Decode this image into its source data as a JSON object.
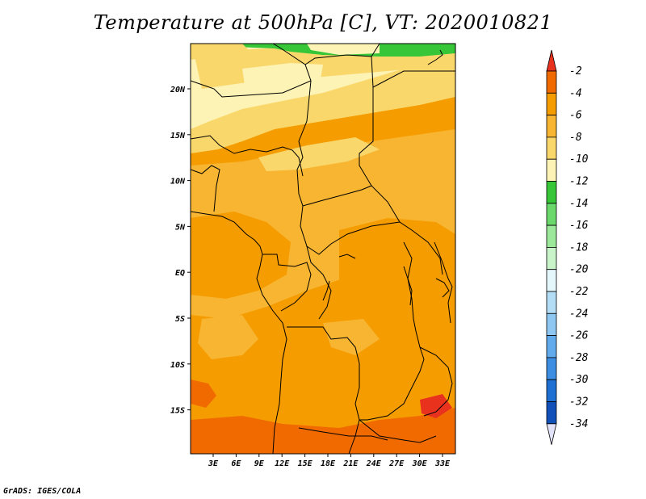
{
  "title": "Temperature at 500hPa [C], VT: 2020010821",
  "credit": "GrADS: IGES/COLA",
  "lat_ticks": [
    "20N",
    "15N",
    "10N",
    "5N",
    "EQ",
    "5S",
    "10S",
    "15S"
  ],
  "lon_ticks": [
    "3E",
    "6E",
    "9E",
    "12E",
    "15E",
    "18E",
    "21E",
    "24E",
    "27E",
    "30E",
    "33E"
  ],
  "colorbar": {
    "labels": [
      "-2",
      "-4",
      "-6",
      "-8",
      "-10",
      "-12",
      "-14",
      "-16",
      "-18",
      "-20",
      "-22",
      "-24",
      "-26",
      "-28",
      "-30",
      "-32",
      "-34"
    ],
    "colors": [
      "#e8321e",
      "#f06a00",
      "#f59c00",
      "#f8b531",
      "#fad76b",
      "#fdf3b4",
      "#37c638",
      "#6ad86b",
      "#9be89a",
      "#c9f3c8",
      "#e4f8fb",
      "#b3dcf5",
      "#8ec7f2",
      "#61abec",
      "#3c8ee2",
      "#1e70d2",
      "#1150b8",
      "#0c2f96",
      "#0a1770",
      "#e2e2f8"
    ]
  },
  "colors": {
    "border": "#000000",
    "field_warm": "#f59c00",
    "field_mid": "#f8b531",
    "field_cool": "#fad76b",
    "field_coolest": "#fdf3b4",
    "field_cold": "#37c638",
    "field_hot": "#f06a00"
  }
}
